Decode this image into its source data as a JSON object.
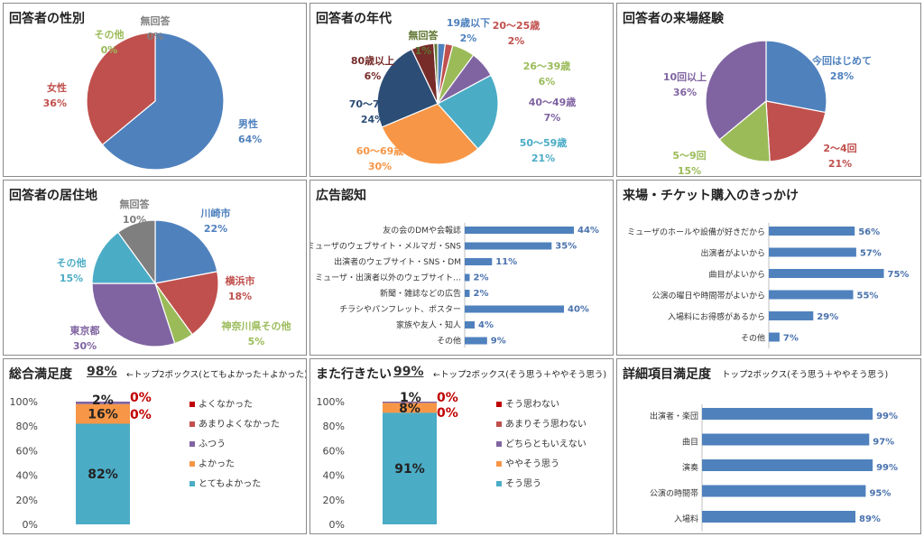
{
  "chart_data": [
    {
      "type": "pie",
      "title": "回答者の性別",
      "categories": [
        "男性",
        "女性",
        "その他",
        "無回答"
      ],
      "values": [
        64,
        36,
        0,
        0
      ],
      "value_labels": [
        "64%",
        "36%",
        "0%",
        "0%"
      ],
      "colors": [
        "#4f81bd",
        "#c0504d",
        "#9bbb59",
        "#7f7f7f"
      ]
    },
    {
      "type": "pie",
      "title": "回答者の年代",
      "categories": [
        "19歳以下",
        "20～25歳",
        "26～39歳",
        "40～49歳",
        "50～59歳",
        "60～69歳",
        "70～79歳",
        "80歳以上",
        "無回答"
      ],
      "values": [
        2,
        2,
        6,
        7,
        21,
        30,
        24,
        6,
        1
      ],
      "value_labels": [
        "2%",
        "2%",
        "6%",
        "7%",
        "21%",
        "30%",
        "24%",
        "6%",
        "1%"
      ],
      "colors": [
        "#4f81bd",
        "#c0504d",
        "#9bbb59",
        "#8064a2",
        "#4bacc6",
        "#f79646",
        "#2c4d75",
        "#772c2a",
        "#5f7530"
      ]
    },
    {
      "type": "pie",
      "title": "回答者の来場経験",
      "categories": [
        "今回はじめて",
        "2～4回",
        "5～9回",
        "10回以上"
      ],
      "values": [
        28,
        21,
        15,
        36
      ],
      "value_labels": [
        "28%",
        "21%",
        "15%",
        "36%"
      ],
      "colors": [
        "#4f81bd",
        "#c0504d",
        "#9bbb59",
        "#8064a2"
      ]
    },
    {
      "type": "pie",
      "title": "回答者の居住地",
      "categories": [
        "川崎市",
        "横浜市",
        "神奈川県その他",
        "東京都",
        "その他",
        "無回答"
      ],
      "values": [
        22,
        18,
        5,
        30,
        15,
        10
      ],
      "value_labels": [
        "22%",
        "18%",
        "5%",
        "30%",
        "15%",
        "10%"
      ],
      "colors": [
        "#4f81bd",
        "#c0504d",
        "#9bbb59",
        "#8064a2",
        "#4bacc6",
        "#7f7f7f"
      ]
    },
    {
      "type": "bar",
      "orientation": "horizontal",
      "title": "広告認知",
      "categories": [
        "友の会のDMや会報誌",
        "ミューザのウェブサイト・メルマガ・SNS",
        "出演者のウェブサイト・SNS・DM",
        "ミューザ・出演者以外のウェブサイト…",
        "新聞・雑誌などの広告",
        "チラシやパンフレット、ポスター",
        "家族や友人・知人",
        "その他"
      ],
      "values": [
        44,
        35,
        11,
        2,
        2,
        40,
        4,
        9
      ],
      "value_labels": [
        "44%",
        "35%",
        "11%",
        "2%",
        "2%",
        "40%",
        "4%",
        "9%"
      ],
      "color": "#4f81bd"
    },
    {
      "type": "bar",
      "orientation": "horizontal",
      "title": "来場・チケット購入のきっかけ",
      "categories": [
        "ミューザのホールや設備が好きだから",
        "出演者がよいから",
        "曲目がよいから",
        "公演の曜日や時間帯がよいから",
        "入場料にお得感があるから",
        "その他"
      ],
      "values": [
        56,
        57,
        75,
        55,
        29,
        7
      ],
      "value_labels": [
        "56%",
        "57%",
        "75%",
        "55%",
        "29%",
        "7%"
      ],
      "color": "#4f81bd"
    },
    {
      "type": "bar",
      "stacked": true,
      "title": "総合満足度",
      "summary_value": "98%",
      "summary_note": "←トップ2ボックス(とてもよかった＋よかった)",
      "y_ticks": [
        "0%",
        "20%",
        "40%",
        "60%",
        "80%",
        "100%"
      ],
      "ylim": [
        0,
        100
      ],
      "series": [
        {
          "name": "とてもよかった",
          "values": [
            82
          ],
          "label": "82%",
          "color": "#4bacc6"
        },
        {
          "name": "よかった",
          "values": [
            16
          ],
          "label": "16%",
          "color": "#f79646"
        },
        {
          "name": "ふつう",
          "values": [
            2
          ],
          "label": "2%",
          "color": "#8064a2"
        },
        {
          "name": "あまりよくなかった",
          "values": [
            0
          ],
          "label": "0%",
          "color": "#c0504d"
        },
        {
          "name": "よくなかった",
          "values": [
            0
          ],
          "label": "0%",
          "color": "#c00000"
        }
      ],
      "legend_order": [
        "よくなかった",
        "あまりよくなかった",
        "ふつう",
        "よかった",
        "とてもよかった"
      ]
    },
    {
      "type": "bar",
      "stacked": true,
      "title": "また行きたい",
      "summary_value": "99%",
      "summary_note": "←トップ2ボックス(そう思う＋ややそう思う)",
      "y_ticks": [
        "0%",
        "20%",
        "40%",
        "60%",
        "80%",
        "100%"
      ],
      "ylim": [
        0,
        100
      ],
      "series": [
        {
          "name": "そう思う",
          "values": [
            91
          ],
          "label": "91%",
          "color": "#4bacc6"
        },
        {
          "name": "ややそう思う",
          "values": [
            8
          ],
          "label": "8%",
          "color": "#f79646"
        },
        {
          "name": "どちらともいえない",
          "values": [
            1
          ],
          "label": "1%",
          "color": "#8064a2"
        },
        {
          "name": "あまりそう思わない",
          "values": [
            0
          ],
          "label": "0%",
          "color": "#c0504d"
        },
        {
          "name": "そう思わない",
          "values": [
            0
          ],
          "label": "0%",
          "color": "#c00000"
        }
      ],
      "legend_order": [
        "そう思わない",
        "あまりそう思わない",
        "どちらともいえない",
        "ややそう思う",
        "そう思う"
      ]
    },
    {
      "type": "bar",
      "orientation": "horizontal",
      "title": "詳細項目満足度",
      "subtitle": "トップ2ボックス(そう思う＋ややそう思う)",
      "categories": [
        "出演者・楽団",
        "曲目",
        "演奏",
        "公演の時間帯",
        "入場料"
      ],
      "values": [
        99,
        97,
        99,
        95,
        89
      ],
      "value_labels": [
        "99%",
        "97%",
        "99%",
        "95%",
        "89%"
      ],
      "color": "#4f81bd"
    }
  ]
}
